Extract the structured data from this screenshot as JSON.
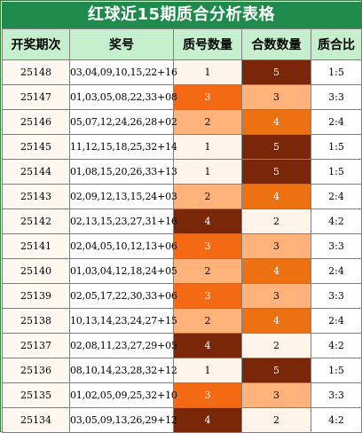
{
  "title": "红球近15期质合分析表格",
  "headers": [
    "开奖期次",
    "奖号",
    "质号数量",
    "合数数量",
    "质合比"
  ],
  "rows": [
    {
      "issue": "25148",
      "numbers": "03,04,09,10,15,22+16",
      "prime": "1",
      "composite": "5",
      "ratio": "1:5"
    },
    {
      "issue": "25147",
      "numbers": "01,03,05,08,22,33+08",
      "prime": "3",
      "composite": "3",
      "ratio": "3:3"
    },
    {
      "issue": "25146",
      "numbers": "05,07,12,24,26,28+02",
      "prime": "2",
      "composite": "4",
      "ratio": "2:4"
    },
    {
      "issue": "25145",
      "numbers": "11,12,15,18,25,32+14",
      "prime": "1",
      "composite": "5",
      "ratio": "1:5"
    },
    {
      "issue": "25144",
      "numbers": "01,08,15,20,26,33+13",
      "prime": "1",
      "composite": "5",
      "ratio": "1:5"
    },
    {
      "issue": "25143",
      "numbers": "02,09,12,13,15,24+03",
      "prime": "2",
      "composite": "4",
      "ratio": "2:4"
    },
    {
      "issue": "25142",
      "numbers": "02,13,15,23,27,31+16",
      "prime": "4",
      "composite": "2",
      "ratio": "4:2"
    },
    {
      "issue": "25141",
      "numbers": "02,04,05,10,12,13+06",
      "prime": "3",
      "composite": "3",
      "ratio": "3:3"
    },
    {
      "issue": "25140",
      "numbers": "01,03,04,12,18,24+05",
      "prime": "2",
      "composite": "4",
      "ratio": "2:4"
    },
    {
      "issue": "25139",
      "numbers": "02,05,17,22,30,33+06",
      "prime": "3",
      "composite": "3",
      "ratio": "3:3"
    },
    {
      "issue": "25138",
      "numbers": "10,13,14,23,24,27+15",
      "prime": "2",
      "composite": "4",
      "ratio": "2:4"
    },
    {
      "issue": "25137",
      "numbers": "02,08,11,23,27,29+05",
      "prime": "4",
      "composite": "2",
      "ratio": "4:2"
    },
    {
      "issue": "25136",
      "numbers": "08,10,14,23,28,32+12",
      "prime": "1",
      "composite": "5",
      "ratio": "1:5"
    },
    {
      "issue": "25135",
      "numbers": "01,02,05,09,25,32+10",
      "prime": "3",
      "composite": "3",
      "ratio": "3:3"
    },
    {
      "issue": "25134",
      "numbers": "03,05,09,13,26,29+12",
      "prime": "4",
      "composite": "2",
      "ratio": "4:2"
    }
  ],
  "colors": {
    "title_bg": "#1f8a4c",
    "header_bg": "#c6efce",
    "count_1": "#fff5ea",
    "count_2": "#ffb27a",
    "count_3": "#f46a14",
    "count_4": "#ed7110",
    "count_5": "#7a2608"
  }
}
